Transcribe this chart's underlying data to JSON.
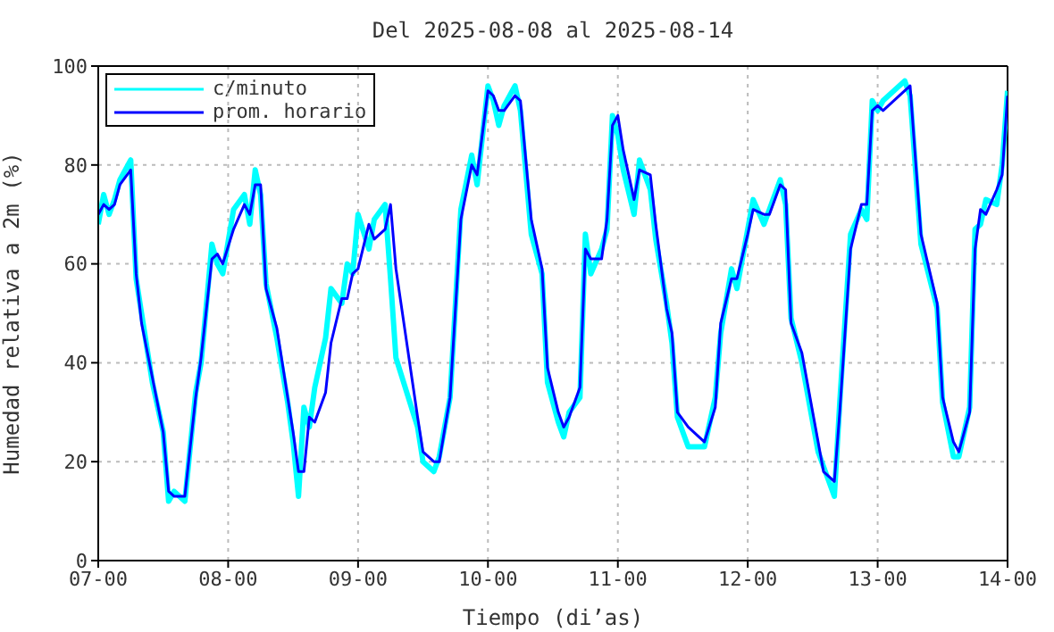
{
  "chart_data": {
    "type": "line",
    "title": "Del 2025-08-08 al 2025-08-14",
    "xlabel": "Tiempo (di’as)",
    "ylabel": "Humedad relativa a 2m (%)",
    "xlim": [
      "2025-08-07T00:00",
      "2025-08-14T00:00"
    ],
    "xticks": [
      {
        "value": "2025-08-07T00:00",
        "label": "07-00"
      },
      {
        "value": "2025-08-08T00:00",
        "label": "08-00"
      },
      {
        "value": "2025-08-09T00:00",
        "label": "09-00"
      },
      {
        "value": "2025-08-10T00:00",
        "label": "10-00"
      },
      {
        "value": "2025-08-11T00:00",
        "label": "11-00"
      },
      {
        "value": "2025-08-12T00:00",
        "label": "12-00"
      },
      {
        "value": "2025-08-13T00:00",
        "label": "13-00"
      },
      {
        "value": "2025-08-14T00:00",
        "label": "14-00"
      }
    ],
    "ylim": [
      0,
      100
    ],
    "yticks": [
      0,
      20,
      40,
      60,
      80,
      100
    ],
    "grid": true,
    "legend": "top left",
    "x": [
      "2025-08-07T00:00",
      "2025-08-07T01:00",
      "2025-08-07T02:00",
      "2025-08-07T03:00",
      "2025-08-07T04:00",
      "2025-08-07T06:00",
      "2025-08-07T07:00",
      "2025-08-07T08:00",
      "2025-08-07T10:00",
      "2025-08-07T12:00",
      "2025-08-07T13:00",
      "2025-08-07T14:00",
      "2025-08-07T16:00",
      "2025-08-07T18:00",
      "2025-08-07T19:00",
      "2025-08-07T21:00",
      "2025-08-07T22:00",
      "2025-08-07T23:00",
      "2025-08-08T01:00",
      "2025-08-08T03:00",
      "2025-08-08T04:00",
      "2025-08-08T05:00",
      "2025-08-08T06:00",
      "2025-08-08T07:00",
      "2025-08-08T09:00",
      "2025-08-08T11:00",
      "2025-08-08T12:00",
      "2025-08-08T13:00",
      "2025-08-08T14:00",
      "2025-08-08T15:00",
      "2025-08-08T16:00",
      "2025-08-08T18:00",
      "2025-08-08T19:00",
      "2025-08-08T21:00",
      "2025-08-08T22:00",
      "2025-08-08T23:00",
      "2025-08-09T00:00",
      "2025-08-09T02:00",
      "2025-08-09T03:00",
      "2025-08-09T05:00",
      "2025-08-09T06:00",
      "2025-08-09T07:00",
      "2025-08-09T11:00",
      "2025-08-09T12:00",
      "2025-08-09T14:00",
      "2025-08-09T15:00",
      "2025-08-09T17:00",
      "2025-08-09T19:00",
      "2025-08-09T21:00",
      "2025-08-09T22:00",
      "2025-08-10T00:00",
      "2025-08-10T01:00",
      "2025-08-10T02:00",
      "2025-08-10T03:00",
      "2025-08-10T05:00",
      "2025-08-10T06:00",
      "2025-08-10T08:00",
      "2025-08-10T10:00",
      "2025-08-10T11:00",
      "2025-08-10T13:00",
      "2025-08-10T14:00",
      "2025-08-10T15:00",
      "2025-08-10T17:00",
      "2025-08-10T18:00",
      "2025-08-10T19:00",
      "2025-08-10T21:00",
      "2025-08-10T22:00",
      "2025-08-10T23:00",
      "2025-08-11T00:00",
      "2025-08-11T01:00",
      "2025-08-11T03:00",
      "2025-08-11T04:00",
      "2025-08-11T06:00",
      "2025-08-11T07:00",
      "2025-08-11T09:00",
      "2025-08-11T10:00",
      "2025-08-11T11:00",
      "2025-08-11T13:00",
      "2025-08-11T16:00",
      "2025-08-11T18:00",
      "2025-08-11T19:00",
      "2025-08-11T21:00",
      "2025-08-11T22:00",
      "2025-08-12T00:00",
      "2025-08-12T01:00",
      "2025-08-12T03:00",
      "2025-08-12T04:00",
      "2025-08-12T06:00",
      "2025-08-12T07:00",
      "2025-08-12T08:00",
      "2025-08-12T10:00",
      "2025-08-12T13:00",
      "2025-08-12T14:00",
      "2025-08-12T16:00",
      "2025-08-12T17:00",
      "2025-08-12T19:00",
      "2025-08-12T21:00",
      "2025-08-12T22:00",
      "2025-08-12T23:00",
      "2025-08-13T00:00",
      "2025-08-13T01:00",
      "2025-08-13T05:00",
      "2025-08-13T06:00",
      "2025-08-13T08:00",
      "2025-08-13T11:00",
      "2025-08-13T12:00",
      "2025-08-13T14:00",
      "2025-08-13T15:00",
      "2025-08-13T17:00",
      "2025-08-13T18:00",
      "2025-08-13T19:00",
      "2025-08-13T20:00",
      "2025-08-13T22:00",
      "2025-08-13T23:00",
      "2025-08-14T00:00"
    ],
    "series": [
      {
        "name": "c/minuto",
        "color": "#00ffff",
        "values": [
          68,
          74,
          70,
          73,
          77,
          81,
          57,
          50,
          36,
          26,
          12,
          14,
          12,
          34,
          40,
          64,
          60,
          58,
          71,
          74,
          68,
          79,
          74,
          56,
          45,
          32,
          24,
          13,
          31,
          27,
          35,
          45,
          55,
          52,
          60,
          58,
          70,
          63,
          69,
          72,
          57,
          41,
          27,
          20,
          18,
          21,
          33,
          71,
          82,
          76,
          96,
          93,
          88,
          92,
          96,
          91,
          66,
          58,
          36,
          28,
          25,
          30,
          33,
          66,
          58,
          63,
          67,
          90,
          86,
          79,
          70,
          81,
          75,
          65,
          52,
          44,
          29,
          23,
          23,
          33,
          46,
          59,
          55,
          67,
          73,
          68,
          71,
          77,
          72,
          49,
          40,
          22,
          19,
          13,
          32,
          66,
          71,
          69,
          93,
          91,
          93,
          97,
          94,
          64,
          51,
          32,
          21,
          21,
          31,
          67,
          68,
          73,
          72,
          80,
          95
        ]
      },
      {
        "name": "prom. horario",
        "color": "#0000ff",
        "values": [
          70,
          72,
          71,
          72,
          76,
          79,
          58,
          48,
          37,
          26,
          14,
          13,
          13,
          33,
          41,
          61,
          62,
          60,
          67,
          72,
          70,
          76,
          76,
          55,
          47,
          33,
          26,
          18,
          18,
          29,
          28,
          34,
          44,
          53,
          53,
          58,
          59,
          68,
          65,
          67,
          72,
          59,
          29,
          22,
          20,
          20,
          33,
          69,
          80,
          78,
          95,
          94,
          91,
          91,
          94,
          93,
          69,
          59,
          39,
          30,
          27,
          29,
          35,
          63,
          61,
          61,
          69,
          88,
          90,
          83,
          73,
          79,
          78,
          68,
          51,
          46,
          30,
          27,
          24,
          31,
          48,
          57,
          57,
          66,
          71,
          70,
          70,
          76,
          75,
          48,
          42,
          24,
          18,
          16,
          30,
          63,
          72,
          72,
          91,
          92,
          91,
          95,
          96,
          66,
          52,
          33,
          24,
          22,
          30,
          63,
          71,
          70,
          75,
          78,
          94
        ]
      }
    ]
  }
}
